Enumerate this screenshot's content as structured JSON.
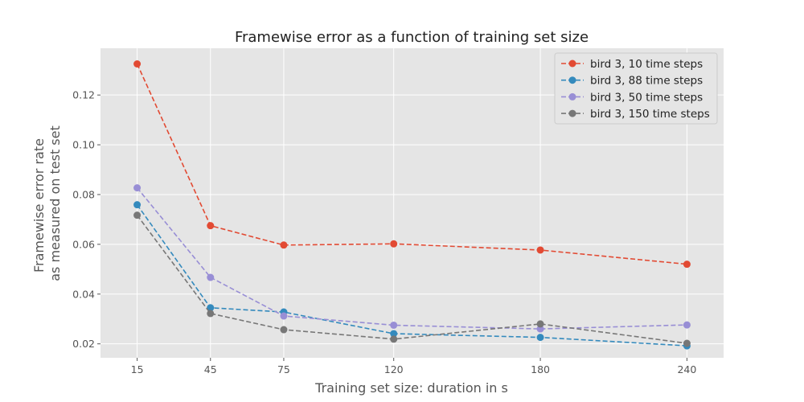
{
  "chart_data": {
    "type": "line",
    "title": "Framewise error as a function of training set size",
    "xlabel": "Training set size: duration in s",
    "ylabel_lines": [
      "Framewise error rate",
      "as measured on test set"
    ],
    "x": [
      15,
      45,
      75,
      120,
      180,
      240
    ],
    "x_ticks": [
      15,
      45,
      75,
      120,
      180,
      240
    ],
    "xlim": [
      0,
      255
    ],
    "y_ticks": [
      0.02,
      0.04,
      0.06,
      0.08,
      0.1,
      0.12
    ],
    "y_tick_labels": [
      "0.02",
      "0.04",
      "0.06",
      "0.08",
      "0.10",
      "0.12"
    ],
    "ylim": [
      0.0144,
      0.1388
    ],
    "grid": true,
    "legend_position": "top-right",
    "series": [
      {
        "name": "bird 3, 10 time steps",
        "color": "#E24A33",
        "values": [
          0.1325,
          0.0675,
          0.0597,
          0.0602,
          0.0577,
          0.052
        ]
      },
      {
        "name": "bird 3, 88 time steps",
        "color": "#348ABD",
        "values": [
          0.0759,
          0.0345,
          0.0328,
          0.0241,
          0.0226,
          0.0192
        ]
      },
      {
        "name": "bird 3, 50 time steps",
        "color": "#988ED5",
        "values": [
          0.0827,
          0.0467,
          0.0312,
          0.0275,
          0.026,
          0.0276
        ]
      },
      {
        "name": "bird 3, 150 time steps",
        "color": "#777777",
        "values": [
          0.0717,
          0.0322,
          0.0257,
          0.0219,
          0.028,
          0.0202
        ]
      }
    ]
  }
}
